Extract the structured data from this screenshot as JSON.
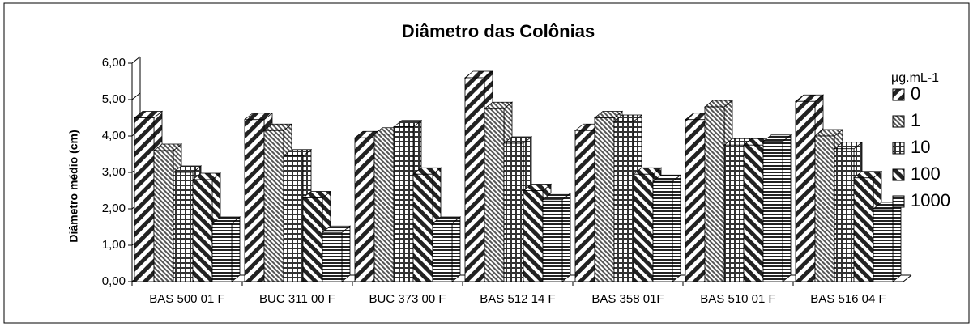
{
  "chart_data": {
    "type": "bar3d",
    "title": "Diâmetro das Colônias",
    "y_label": "Diâmetro médio (cm)",
    "legend_title": "µg.mL-1",
    "categories": [
      "BAS 500 01 F",
      "BUC 311 00 F",
      "BUC 373 00 F",
      "BAS 512 14 F",
      "BAS 358 01F",
      "BAS 510 01 F",
      "BAS 516 04 F"
    ],
    "series": [
      {
        "name": "0",
        "values": [
          4.5,
          4.45,
          3.95,
          5.6,
          4.15,
          4.45,
          4.95
        ]
      },
      {
        "name": "1",
        "values": [
          3.6,
          4.15,
          4.05,
          4.75,
          4.5,
          4.8,
          4.0
        ]
      },
      {
        "name": "10",
        "values": [
          3.0,
          3.45,
          4.25,
          3.8,
          4.4,
          3.75,
          3.65
        ]
      },
      {
        "name": "100",
        "values": [
          2.8,
          2.3,
          2.95,
          2.5,
          2.95,
          3.75,
          2.85
        ]
      },
      {
        "name": "1000",
        "values": [
          1.6,
          1.35,
          1.6,
          2.25,
          2.75,
          3.85,
          2.0
        ]
      }
    ],
    "ylim": [
      0,
      6
    ],
    "yticks": [
      {
        "value": 0,
        "label": "0,00"
      },
      {
        "value": 1,
        "label": "1,00"
      },
      {
        "value": 2,
        "label": "2,00"
      },
      {
        "value": 3,
        "label": "3,00"
      },
      {
        "value": 4,
        "label": "4,00"
      },
      {
        "value": 5,
        "label": "5,00"
      },
      {
        "value": 6,
        "label": "6,00"
      }
    ]
  }
}
